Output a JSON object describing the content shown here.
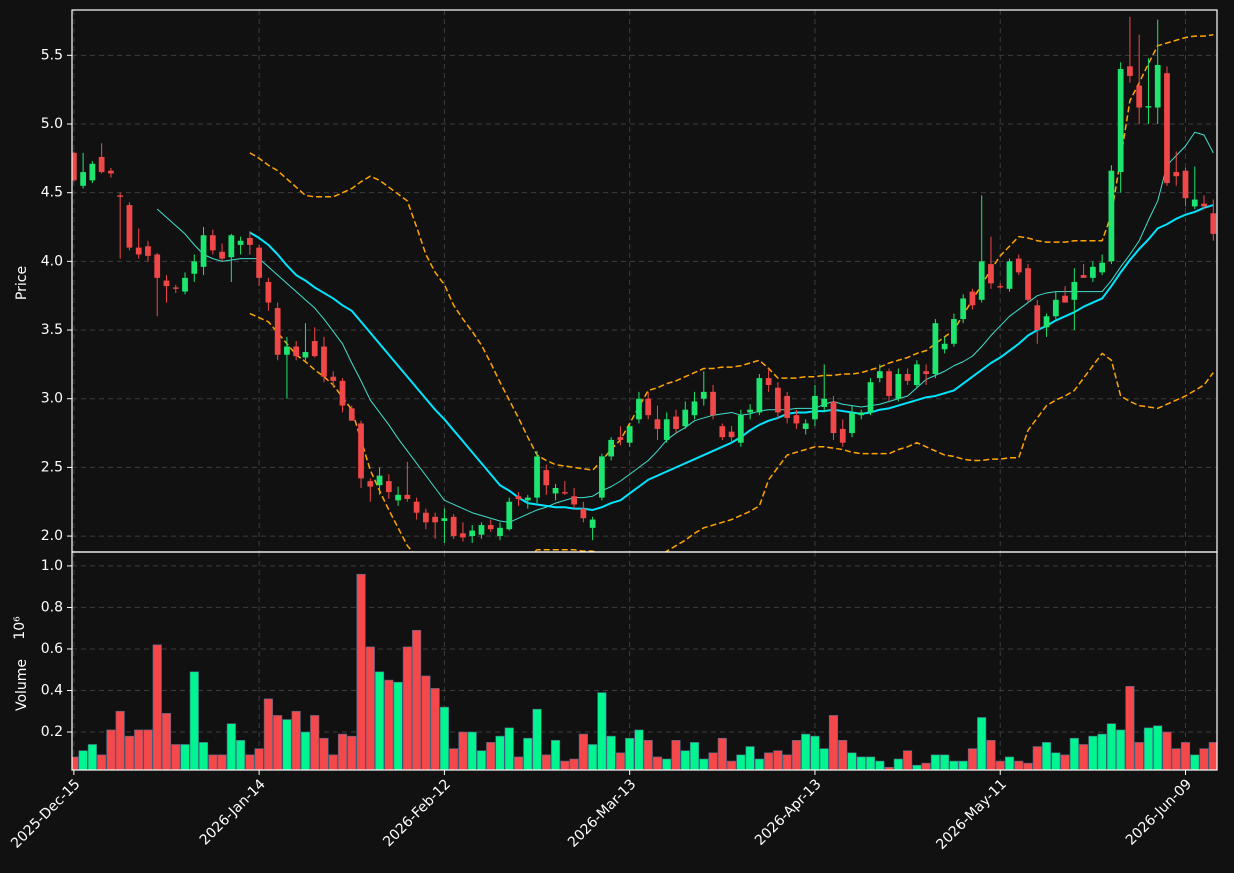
{
  "chart_data": {
    "type": "candlestick",
    "y_label": "Price",
    "volume_label": "Volume",
    "volume_offset": "10⁶",
    "categories": [
      "2025-Dec-15",
      null,
      null,
      null,
      null,
      null,
      null,
      null,
      null,
      null,
      null,
      null,
      null,
      null,
      null,
      null,
      null,
      null,
      null,
      null,
      "2026-Jan-14",
      null,
      null,
      null,
      null,
      null,
      null,
      null,
      null,
      null,
      null,
      null,
      null,
      null,
      null,
      null,
      null,
      null,
      null,
      null,
      "2026-Feb-12",
      null,
      null,
      null,
      null,
      null,
      null,
      null,
      null,
      null,
      null,
      null,
      null,
      null,
      null,
      null,
      null,
      null,
      null,
      null,
      "2026-Mar-13",
      null,
      null,
      null,
      null,
      null,
      null,
      null,
      null,
      null,
      null,
      null,
      null,
      null,
      null,
      null,
      null,
      null,
      null,
      null,
      "2026-Apr-13",
      null,
      null,
      null,
      null,
      null,
      null,
      null,
      null,
      null,
      null,
      null,
      null,
      null,
      null,
      null,
      null,
      null,
      null,
      null,
      "2026-May-11",
      null,
      null,
      null,
      null,
      null,
      null,
      null,
      null,
      null,
      null,
      null,
      null,
      null,
      null,
      null,
      null,
      null,
      null,
      null,
      "2026-Jun-09",
      null,
      null,
      null
    ],
    "open": [
      4.79,
      4.55,
      4.59,
      4.76,
      4.66,
      4.48,
      4.41,
      4.1,
      4.11,
      4.05,
      3.86,
      3.81,
      3.78,
      3.91,
      3.96,
      4.19,
      4.07,
      4.03,
      4.12,
      4.17,
      4.1,
      3.85,
      3.66,
      3.32,
      3.38,
      3.3,
      3.42,
      3.38,
      3.16,
      3.13,
      2.93,
      2.82,
      2.4,
      2.37,
      2.4,
      2.26,
      2.3,
      2.25,
      2.17,
      2.14,
      2.11,
      2.14,
      2.02,
      2.0,
      2.01,
      2.08,
      2.0,
      2.05,
      2.29,
      2.26,
      2.28,
      2.48,
      2.31,
      2.32,
      2.29,
      2.2,
      2.06,
      2.28,
      2.58,
      2.72,
      2.68,
      2.85,
      3.0,
      2.85,
      2.7,
      2.87,
      2.8,
      2.88,
      3.0,
      3.05,
      2.8,
      2.76,
      2.68,
      2.9,
      2.9,
      3.15,
      3.08,
      3.02,
      2.88,
      2.78,
      2.85,
      2.94,
      2.98,
      2.78,
      2.75,
      2.88,
      2.9,
      3.15,
      3.2,
      3.0,
      3.18,
      3.1,
      3.2,
      3.18,
      3.36,
      3.4,
      3.58,
      3.78,
      3.72,
      3.98,
      3.82,
      3.8,
      4.02,
      3.95,
      3.68,
      3.52,
      3.6,
      3.75,
      3.72,
      3.9,
      3.88,
      3.92,
      4.0,
      4.65,
      5.42,
      5.28,
      5.12,
      5.12,
      5.37,
      4.65,
      4.66,
      4.4,
      4.42,
      4.35
    ],
    "high": [
      4.8,
      4.79,
      4.73,
      4.86,
      4.68,
      4.5,
      4.43,
      4.24,
      4.15,
      4.06,
      3.9,
      3.83,
      3.92,
      4.05,
      4.25,
      4.23,
      4.13,
      4.2,
      4.18,
      4.22,
      4.12,
      3.88,
      3.7,
      3.45,
      3.42,
      3.55,
      3.52,
      3.45,
      3.2,
      3.15,
      2.95,
      2.84,
      2.42,
      2.5,
      2.45,
      2.36,
      2.54,
      2.28,
      2.2,
      2.17,
      2.2,
      2.16,
      2.1,
      2.08,
      2.1,
      2.12,
      2.1,
      2.28,
      2.32,
      2.3,
      2.62,
      2.52,
      2.38,
      2.4,
      2.35,
      2.25,
      2.14,
      2.6,
      2.72,
      2.8,
      2.82,
      3.05,
      3.05,
      2.95,
      2.9,
      2.92,
      2.98,
      3.05,
      3.2,
      3.1,
      2.82,
      2.8,
      2.92,
      2.96,
      3.18,
      3.22,
      3.12,
      3.05,
      2.92,
      2.85,
      3.1,
      3.25,
      3.02,
      2.85,
      2.95,
      2.92,
      3.15,
      3.25,
      3.22,
      3.22,
      3.22,
      3.28,
      3.25,
      3.58,
      3.45,
      3.62,
      3.76,
      3.8,
      4.48,
      4.18,
      3.84,
      4.02,
      4.05,
      3.98,
      3.72,
      3.62,
      3.78,
      3.82,
      3.95,
      3.98,
      4.0,
      4.05,
      4.7,
      5.45,
      5.78,
      5.65,
      5.48,
      5.76,
      5.42,
      4.8,
      4.68,
      4.69,
      4.48,
      4.45
    ],
    "low": [
      4.58,
      4.53,
      4.57,
      4.64,
      4.61,
      4.02,
      4.08,
      4.02,
      4.0,
      3.6,
      3.7,
      3.77,
      3.76,
      3.85,
      3.9,
      4.05,
      4.0,
      3.85,
      4.05,
      4.05,
      3.82,
      3.64,
      3.28,
      3.0,
      3.28,
      3.28,
      3.3,
      3.12,
      3.08,
      2.9,
      2.84,
      2.35,
      2.25,
      2.3,
      2.27,
      2.22,
      2.25,
      2.12,
      2.05,
      1.98,
      1.95,
      1.98,
      1.96,
      1.95,
      1.98,
      2.03,
      1.97,
      2.04,
      2.22,
      2.2,
      2.24,
      2.3,
      2.26,
      2.3,
      2.2,
      2.1,
      1.97,
      2.26,
      2.55,
      2.66,
      2.65,
      2.82,
      2.85,
      2.7,
      2.68,
      2.75,
      2.78,
      2.85,
      2.95,
      2.85,
      2.7,
      2.68,
      2.65,
      2.85,
      2.88,
      3.05,
      2.85,
      2.82,
      2.78,
      2.74,
      2.8,
      2.9,
      2.7,
      2.65,
      2.72,
      2.85,
      2.88,
      3.12,
      2.98,
      2.98,
      3.1,
      3.08,
      3.1,
      3.15,
      3.33,
      3.38,
      3.55,
      3.65,
      3.7,
      3.8,
      3.8,
      3.78,
      3.9,
      3.7,
      3.4,
      3.45,
      3.58,
      3.7,
      3.5,
      3.88,
      3.85,
      3.9,
      3.98,
      4.5,
      5.3,
      5.0,
      5.0,
      5.0,
      4.55,
      4.55,
      4.4,
      4.38,
      4.38,
      4.15
    ],
    "close": [
      4.59,
      4.65,
      4.71,
      4.65,
      4.64,
      4.47,
      4.1,
      4.05,
      4.04,
      3.88,
      3.82,
      3.8,
      3.88,
      4.0,
      4.19,
      4.08,
      4.02,
      4.19,
      4.15,
      4.12,
      3.88,
      3.7,
      3.32,
      3.38,
      3.31,
      3.34,
      3.31,
      3.16,
      3.13,
      2.95,
      2.84,
      2.42,
      2.36,
      2.44,
      2.32,
      2.3,
      2.27,
      2.17,
      2.1,
      2.1,
      2.13,
      2.0,
      1.99,
      2.04,
      2.08,
      2.05,
      2.06,
      2.25,
      2.27,
      2.28,
      2.58,
      2.37,
      2.35,
      2.31,
      2.23,
      2.13,
      2.12,
      2.58,
      2.7,
      2.7,
      2.8,
      3.0,
      2.88,
      2.78,
      2.85,
      2.78,
      2.92,
      2.98,
      3.05,
      2.88,
      2.72,
      2.72,
      2.88,
      2.92,
      3.15,
      3.1,
      2.9,
      2.86,
      2.82,
      2.82,
      3.02,
      3.0,
      2.75,
      2.68,
      2.9,
      2.9,
      3.12,
      3.2,
      3.02,
      3.18,
      3.13,
      3.25,
      3.18,
      3.55,
      3.4,
      3.58,
      3.73,
      3.68,
      4.0,
      3.84,
      3.81,
      4.0,
      3.92,
      3.72,
      3.5,
      3.6,
      3.72,
      3.7,
      3.85,
      3.88,
      3.96,
      3.99,
      4.66,
      5.4,
      5.35,
      5.12,
      5.13,
      5.43,
      4.57,
      4.62,
      4.46,
      4.45,
      4.4,
      4.2
    ],
    "volume": [
      0.08,
      0.11,
      0.14,
      0.09,
      0.21,
      0.3,
      0.18,
      0.21,
      0.21,
      0.62,
      0.29,
      0.14,
      0.14,
      0.49,
      0.15,
      0.09,
      0.09,
      0.24,
      0.16,
      0.09,
      0.12,
      0.36,
      0.28,
      0.26,
      0.3,
      0.2,
      0.28,
      0.17,
      0.09,
      0.19,
      0.18,
      0.96,
      0.61,
      0.49,
      0.45,
      0.44,
      0.61,
      0.69,
      0.47,
      0.41,
      0.32,
      0.12,
      0.2,
      0.2,
      0.11,
      0.15,
      0.18,
      0.22,
      0.08,
      0.17,
      0.31,
      0.09,
      0.16,
      0.06,
      0.07,
      0.19,
      0.14,
      0.39,
      0.18,
      0.1,
      0.17,
      0.21,
      0.16,
      0.08,
      0.07,
      0.16,
      0.11,
      0.15,
      0.07,
      0.1,
      0.17,
      0.06,
      0.09,
      0.13,
      0.07,
      0.1,
      0.11,
      0.09,
      0.16,
      0.19,
      0.18,
      0.12,
      0.28,
      0.16,
      0.1,
      0.08,
      0.08,
      0.06,
      0.03,
      0.07,
      0.11,
      0.04,
      0.05,
      0.09,
      0.09,
      0.06,
      0.06,
      0.12,
      0.27,
      0.16,
      0.06,
      0.08,
      0.06,
      0.05,
      0.13,
      0.15,
      0.1,
      0.09,
      0.17,
      0.14,
      0.18,
      0.19,
      0.24,
      0.21,
      0.42,
      0.15,
      0.22,
      0.23,
      0.2,
      0.12,
      0.15,
      0.09,
      0.12,
      0.15
    ],
    "up_color": "#1ee56f",
    "down_color": "#f04848",
    "volume_up_color": "#00f590",
    "volume_down_color": "#f5484a",
    "overlays": [
      {
        "color": "#40e0d0",
        "width": 1,
        "dash": false,
        "values": [
          null,
          null,
          null,
          null,
          null,
          null,
          null,
          null,
          null,
          4.38,
          4.32,
          4.26,
          4.2,
          4.12,
          4.05,
          4.02,
          4.0,
          4.01,
          4.02,
          4.02,
          4.02,
          3.96,
          3.9,
          3.84,
          3.78,
          3.72,
          3.66,
          3.58,
          3.49,
          3.4,
          3.26,
          3.13,
          2.99,
          2.9,
          2.81,
          2.71,
          2.62,
          2.53,
          2.44,
          2.35,
          2.26,
          2.23,
          2.2,
          2.17,
          2.15,
          2.13,
          2.11,
          2.1,
          2.13,
          2.16,
          2.19,
          2.21,
          2.24,
          2.26,
          2.28,
          2.28,
          2.29,
          2.33,
          2.36,
          2.4,
          2.45,
          2.5,
          2.55,
          2.62,
          2.7,
          2.75,
          2.79,
          2.84,
          2.86,
          2.88,
          2.89,
          2.9,
          2.88,
          2.89,
          2.91,
          2.92,
          2.92,
          2.92,
          2.93,
          2.93,
          2.93,
          2.96,
          2.98,
          2.96,
          2.95,
          2.94,
          2.95,
          2.96,
          2.98,
          3.0,
          3.02,
          3.08,
          3.14,
          3.17,
          3.2,
          3.24,
          3.27,
          3.31,
          3.38,
          3.46,
          3.53,
          3.6,
          3.65,
          3.7,
          3.75,
          3.77,
          3.78,
          3.78,
          3.78,
          3.78,
          3.78,
          3.78,
          3.86,
          3.96,
          4.05,
          4.15,
          4.3,
          4.44,
          4.7,
          4.77,
          4.84,
          4.94,
          4.92,
          4.79
        ]
      },
      {
        "color": "#00e5ff",
        "width": 2,
        "dash": false,
        "values": [
          null,
          null,
          null,
          null,
          null,
          null,
          null,
          null,
          null,
          null,
          null,
          null,
          null,
          null,
          null,
          null,
          null,
          null,
          null,
          4.21,
          4.17,
          4.12,
          4.05,
          3.97,
          3.9,
          3.86,
          3.81,
          3.77,
          3.73,
          3.68,
          3.64,
          3.56,
          3.48,
          3.4,
          3.32,
          3.24,
          3.16,
          3.08,
          3.0,
          2.92,
          2.85,
          2.77,
          2.69,
          2.61,
          2.53,
          2.45,
          2.37,
          2.33,
          2.28,
          2.24,
          2.23,
          2.22,
          2.21,
          2.21,
          2.2,
          2.2,
          2.19,
          2.21,
          2.24,
          2.26,
          2.31,
          2.36,
          2.41,
          2.44,
          2.47,
          2.5,
          2.53,
          2.56,
          2.59,
          2.62,
          2.65,
          2.68,
          2.72,
          2.77,
          2.81,
          2.84,
          2.86,
          2.89,
          2.9,
          2.9,
          2.91,
          2.91,
          2.92,
          2.91,
          2.9,
          2.89,
          2.9,
          2.92,
          2.93,
          2.95,
          2.97,
          2.99,
          3.01,
          3.02,
          3.04,
          3.06,
          3.11,
          3.16,
          3.21,
          3.26,
          3.3,
          3.35,
          3.4,
          3.46,
          3.5,
          3.53,
          3.57,
          3.6,
          3.63,
          3.67,
          3.7,
          3.73,
          3.82,
          3.92,
          4.01,
          4.09,
          4.16,
          4.24,
          4.27,
          4.31,
          4.34,
          4.36,
          4.39,
          4.41
        ]
      },
      {
        "color": "#ffa500",
        "width": 1.5,
        "dash": true,
        "values": [
          null,
          null,
          null,
          null,
          null,
          null,
          null,
          null,
          null,
          null,
          null,
          null,
          null,
          null,
          null,
          null,
          null,
          null,
          null,
          4.79,
          4.75,
          4.7,
          4.66,
          4.6,
          4.54,
          4.48,
          4.47,
          4.47,
          4.47,
          4.5,
          4.53,
          4.58,
          4.62,
          4.59,
          4.54,
          4.49,
          4.44,
          4.25,
          4.05,
          3.92,
          3.83,
          3.68,
          3.58,
          3.49,
          3.39,
          3.26,
          3.12,
          2.99,
          2.86,
          2.72,
          2.59,
          2.55,
          2.52,
          2.51,
          2.5,
          2.49,
          2.48,
          2.55,
          2.63,
          2.7,
          2.82,
          2.94,
          3.06,
          3.08,
          3.11,
          3.13,
          3.16,
          3.19,
          3.22,
          3.22,
          3.23,
          3.23,
          3.24,
          3.26,
          3.28,
          3.22,
          3.15,
          3.15,
          3.15,
          3.16,
          3.16,
          3.17,
          3.17,
          3.18,
          3.18,
          3.19,
          3.21,
          3.23,
          3.26,
          3.28,
          3.3,
          3.33,
          3.35,
          3.4,
          3.45,
          3.5,
          3.61,
          3.72,
          3.83,
          3.94,
          4.04,
          4.11,
          4.18,
          4.17,
          4.15,
          4.14,
          4.14,
          4.14,
          4.15,
          4.15,
          4.15,
          4.15,
          4.34,
          4.75,
          5.17,
          5.3,
          5.44,
          5.57,
          5.59,
          5.61,
          5.63,
          5.64,
          5.64,
          5.65
        ]
      },
      {
        "color": "#ffa500",
        "width": 1.5,
        "dash": true,
        "values": [
          null,
          null,
          null,
          null,
          null,
          null,
          null,
          null,
          null,
          null,
          null,
          null,
          null,
          null,
          null,
          null,
          null,
          null,
          null,
          3.62,
          3.59,
          3.56,
          3.48,
          3.4,
          3.32,
          3.27,
          3.21,
          3.16,
          3.1,
          3.01,
          2.92,
          2.7,
          2.48,
          2.33,
          2.19,
          2.06,
          1.93,
          1.85,
          1.8,
          1.77,
          1.75,
          1.74,
          1.73,
          1.72,
          1.72,
          1.74,
          1.76,
          1.78,
          1.8,
          1.85,
          1.9,
          1.9,
          1.9,
          1.9,
          1.9,
          1.89,
          1.89,
          1.87,
          1.85,
          1.82,
          1.8,
          1.8,
          1.8,
          1.83,
          1.89,
          1.93,
          1.97,
          2.02,
          2.06,
          2.08,
          2.1,
          2.12,
          2.15,
          2.18,
          2.22,
          2.41,
          2.5,
          2.59,
          2.61,
          2.63,
          2.65,
          2.65,
          2.64,
          2.63,
          2.61,
          2.6,
          2.6,
          2.6,
          2.6,
          2.63,
          2.65,
          2.68,
          2.65,
          2.62,
          2.59,
          2.58,
          2.56,
          2.55,
          2.55,
          2.56,
          2.56,
          2.57,
          2.57,
          2.77,
          2.86,
          2.95,
          2.99,
          3.02,
          3.06,
          3.15,
          3.24,
          3.33,
          3.28,
          3.02,
          2.98,
          2.95,
          2.94,
          2.93,
          2.96,
          2.99,
          3.02,
          3.06,
          3.1,
          3.19
        ]
      }
    ],
    "xlim": [
      -0.2,
      123.4
    ],
    "ylim": [
      1.884,
      5.83
    ],
    "yticks": [
      {
        "value": 2,
        "label": "2.0"
      },
      2.5,
      {
        "value": 3,
        "label": "3.0"
      },
      3.5,
      {
        "value": 4,
        "label": "4.0"
      },
      4.5,
      {
        "value": 5,
        "label": "5.0"
      },
      5.5
    ],
    "volume_ylim": [
      0.017,
      1.067
    ],
    "volume_yticks": [
      0.2,
      0.4,
      0.6,
      0.8,
      {
        "value": 1,
        "label": "1.0"
      }
    ],
    "grid": true
  }
}
